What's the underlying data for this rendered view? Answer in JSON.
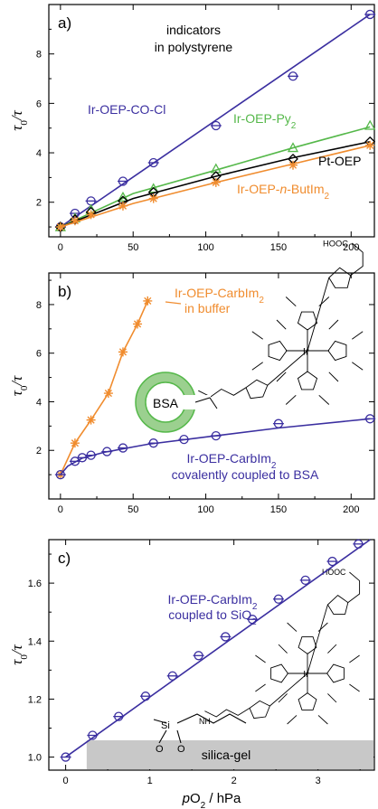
{
  "chart_data": [
    {
      "type": "line",
      "panel_label": "a)",
      "ylabel": "τ0/τ",
      "annotation": [
        "indicators",
        "in polystyrene"
      ],
      "xlim": [
        -8,
        216
      ],
      "ylim": [
        0.6,
        10
      ],
      "xticks": [
        0,
        50,
        100,
        150,
        200
      ],
      "yticks": [
        2,
        4,
        6,
        8
      ],
      "grid": false,
      "series": [
        {
          "name": "Ir-OEP-CO-Cl",
          "color": "#3b2fa0",
          "marker": "circle-plus",
          "x": [
            0,
            10,
            21,
            43,
            64,
            107,
            160,
            213
          ],
          "y": [
            1.0,
            1.55,
            2.05,
            2.85,
            3.6,
            5.1,
            7.1,
            9.6
          ],
          "fit": [
            [
              0,
              1.0
            ],
            [
              213,
              9.6
            ]
          ]
        },
        {
          "name": "Ir-OEP-Py2",
          "color": "#55b84a",
          "marker": "triangle",
          "x": [
            0,
            10,
            21,
            43,
            64,
            107,
            160,
            213
          ],
          "y": [
            1.0,
            1.35,
            1.7,
            2.2,
            2.55,
            3.35,
            4.2,
            5.1
          ],
          "fit": [
            [
              0,
              1.0
            ],
            [
              50,
              2.35
            ],
            [
              107,
              3.3
            ],
            [
              160,
              4.2
            ],
            [
              213,
              5.05
            ]
          ]
        },
        {
          "name": "Pt-OEP",
          "color": "#000000",
          "marker": "diamond",
          "x": [
            0,
            10,
            21,
            43,
            64,
            107,
            160,
            213
          ],
          "y": [
            1.0,
            1.3,
            1.6,
            2.05,
            2.4,
            3.05,
            3.75,
            4.45
          ],
          "fit": [
            [
              0,
              1.0
            ],
            [
              50,
              2.15
            ],
            [
              107,
              3.05
            ],
            [
              160,
              3.8
            ],
            [
              213,
              4.45
            ]
          ]
        },
        {
          "name": "Ir-OEP-n-ButIm2",
          "color": "#f08c2e",
          "marker": "asterisk",
          "x": [
            0,
            10,
            21,
            43,
            64,
            107,
            160,
            213
          ],
          "y": [
            1.0,
            1.25,
            1.5,
            1.85,
            2.15,
            2.8,
            3.5,
            4.3
          ],
          "fit": [
            [
              0,
              1.0
            ],
            [
              50,
              1.95
            ],
            [
              107,
              2.8
            ],
            [
              160,
              3.55
            ],
            [
              213,
              4.3
            ]
          ]
        }
      ],
      "labels": [
        {
          "series": 0,
          "text": "Ir-OEP-CO-Cl"
        },
        {
          "series": 1,
          "text": "Ir-OEP-Py",
          "sub": "2"
        },
        {
          "series": 2,
          "text": "Pt-OEP"
        },
        {
          "series": 3,
          "text": "Ir-OEP-",
          "italic": "n",
          "text2": "-ButIm",
          "sub": "2"
        }
      ]
    },
    {
      "type": "line",
      "panel_label": "b)",
      "ylabel": "τ0/τ",
      "xlim": [
        -8,
        216
      ],
      "ylim": [
        0,
        9.3
      ],
      "xticks": [
        0,
        50,
        100,
        150,
        200
      ],
      "yticks": [
        2,
        4,
        6,
        8
      ],
      "grid": false,
      "series": [
        {
          "name": "Ir-OEP-CarbIm2 in buffer",
          "color": "#f08c2e",
          "marker": "asterisk",
          "x": [
            0,
            10,
            21,
            33,
            43,
            53,
            60
          ],
          "y": [
            1.0,
            2.3,
            3.25,
            4.35,
            6.05,
            7.2,
            8.15
          ],
          "fit": [
            [
              0,
              1.0
            ],
            [
              10,
              2.3
            ],
            [
              21,
              3.25
            ],
            [
              33,
              4.35
            ],
            [
              43,
              6.05
            ],
            [
              53,
              7.2
            ],
            [
              60,
              8.15
            ]
          ]
        },
        {
          "name": "Ir-OEP-CarbIm2 covalently coupled to BSA",
          "color": "#3b2fa0",
          "marker": "circle-plus",
          "x": [
            0,
            10,
            15,
            21,
            32,
            43,
            64,
            85,
            107,
            150,
            213
          ],
          "y": [
            1.0,
            1.55,
            1.7,
            1.8,
            1.95,
            2.1,
            2.3,
            2.45,
            2.6,
            3.1,
            3.3
          ],
          "fit": [
            [
              0,
              1.0
            ],
            [
              5,
              1.35
            ],
            [
              15,
              1.68
            ],
            [
              30,
              1.92
            ],
            [
              60,
              2.25
            ],
            [
              100,
              2.55
            ],
            [
              150,
              2.92
            ],
            [
              213,
              3.3
            ]
          ]
        }
      ],
      "labels": [
        {
          "series": 0,
          "lines": [
            {
              "text": "Ir-OEP-CarbIm",
              "sub": "2"
            },
            {
              "text": "in buffer"
            }
          ]
        },
        {
          "series": 1,
          "lines": [
            {
              "text": "Ir-OEP-CarbIm",
              "sub": "2"
            },
            {
              "text": "covalently coupled to BSA"
            }
          ]
        }
      ],
      "inset_text": "BSA"
    },
    {
      "type": "line",
      "panel_label": "c)",
      "ylabel": "τ0/τ",
      "xlabel": "pO2 / hPa",
      "xlim": [
        -0.2,
        3.67
      ],
      "ylim": [
        0.955,
        1.75
      ],
      "xticks": [
        0,
        1,
        2,
        3
      ],
      "yticks": [
        1.0,
        1.2,
        1.4,
        1.6
      ],
      "ytick_format": "1dp",
      "grid": false,
      "series": [
        {
          "name": "Ir-OEP-CarbIm2 coupled to SiO2",
          "color": "#3b2fa0",
          "marker": "circle-plus",
          "x": [
            0.0,
            0.32,
            0.63,
            0.95,
            1.27,
            1.58,
            1.9,
            2.22,
            2.53,
            2.85,
            3.17,
            3.48
          ],
          "y": [
            1.0,
            1.075,
            1.14,
            1.21,
            1.28,
            1.35,
            1.415,
            1.475,
            1.545,
            1.61,
            1.675,
            1.735
          ],
          "fit": [
            [
              0.0,
              1.0
            ],
            [
              3.62,
              1.75
            ]
          ]
        }
      ],
      "labels": [
        {
          "series": 0,
          "lines": [
            {
              "text": "Ir-OEP-CarbIm",
              "sub": "2"
            },
            {
              "text": "coupled to SiO",
              "sub": "2"
            }
          ]
        }
      ],
      "band_text": "silica-gel",
      "band_color": "#c8c8c8"
    }
  ],
  "molecule_labels": {
    "hooc": "HOOC",
    "ir": "Ir",
    "nh": "NH",
    "o": "O",
    "n": "N",
    "si": "Si"
  },
  "xlabel_parts": {
    "p": "p",
    "o": "O",
    "sub": "2",
    "unit": " / hPa"
  }
}
